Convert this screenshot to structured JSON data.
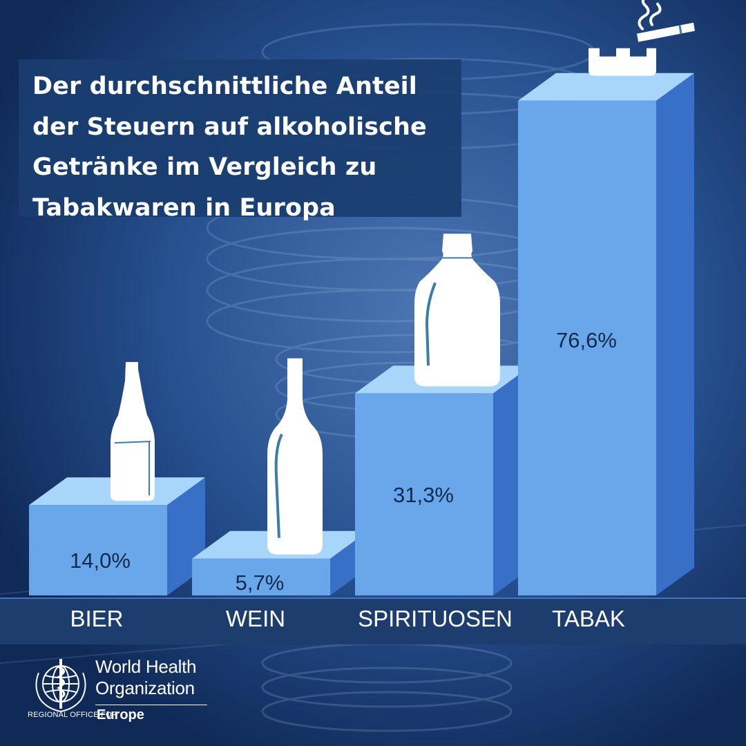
{
  "title": "Der durchschnittliche Anteil der Steuern auf alkoholische Getränke im Vergleich zu Tabakwaren in Europa",
  "chart_data": {
    "type": "bar",
    "title": "Der durchschnittliche Anteil der Steuern auf alkoholische Getränke im Vergleich zu Tabakwaren in Europa",
    "categories": [
      "BIER",
      "WEIN",
      "SPIRITUOSEN",
      "TABAK"
    ],
    "values": [
      14.0,
      5.7,
      31.3,
      76.6
    ],
    "value_labels": [
      "14,0%",
      "5,7%",
      "31,3%",
      "76,6%"
    ],
    "icons": [
      "beer-bottle-icon",
      "wine-bottle-icon",
      "spirits-bottle-icon",
      "ashtray-cigarette-icon"
    ],
    "unit": "%",
    "xlabel": "",
    "ylabel": "",
    "legend": "none",
    "grid": false,
    "colors": {
      "front": "#6aa6ea",
      "side": "#386fc7",
      "top": "#a8d6fb",
      "label": "#10294f",
      "icon": "#ffffff",
      "icon_accent": "#3a7da8"
    }
  },
  "logo": {
    "line1": "World Health",
    "line2": "Organization",
    "sub": "REGIONAL OFFICE FOR",
    "region": "Europe"
  }
}
